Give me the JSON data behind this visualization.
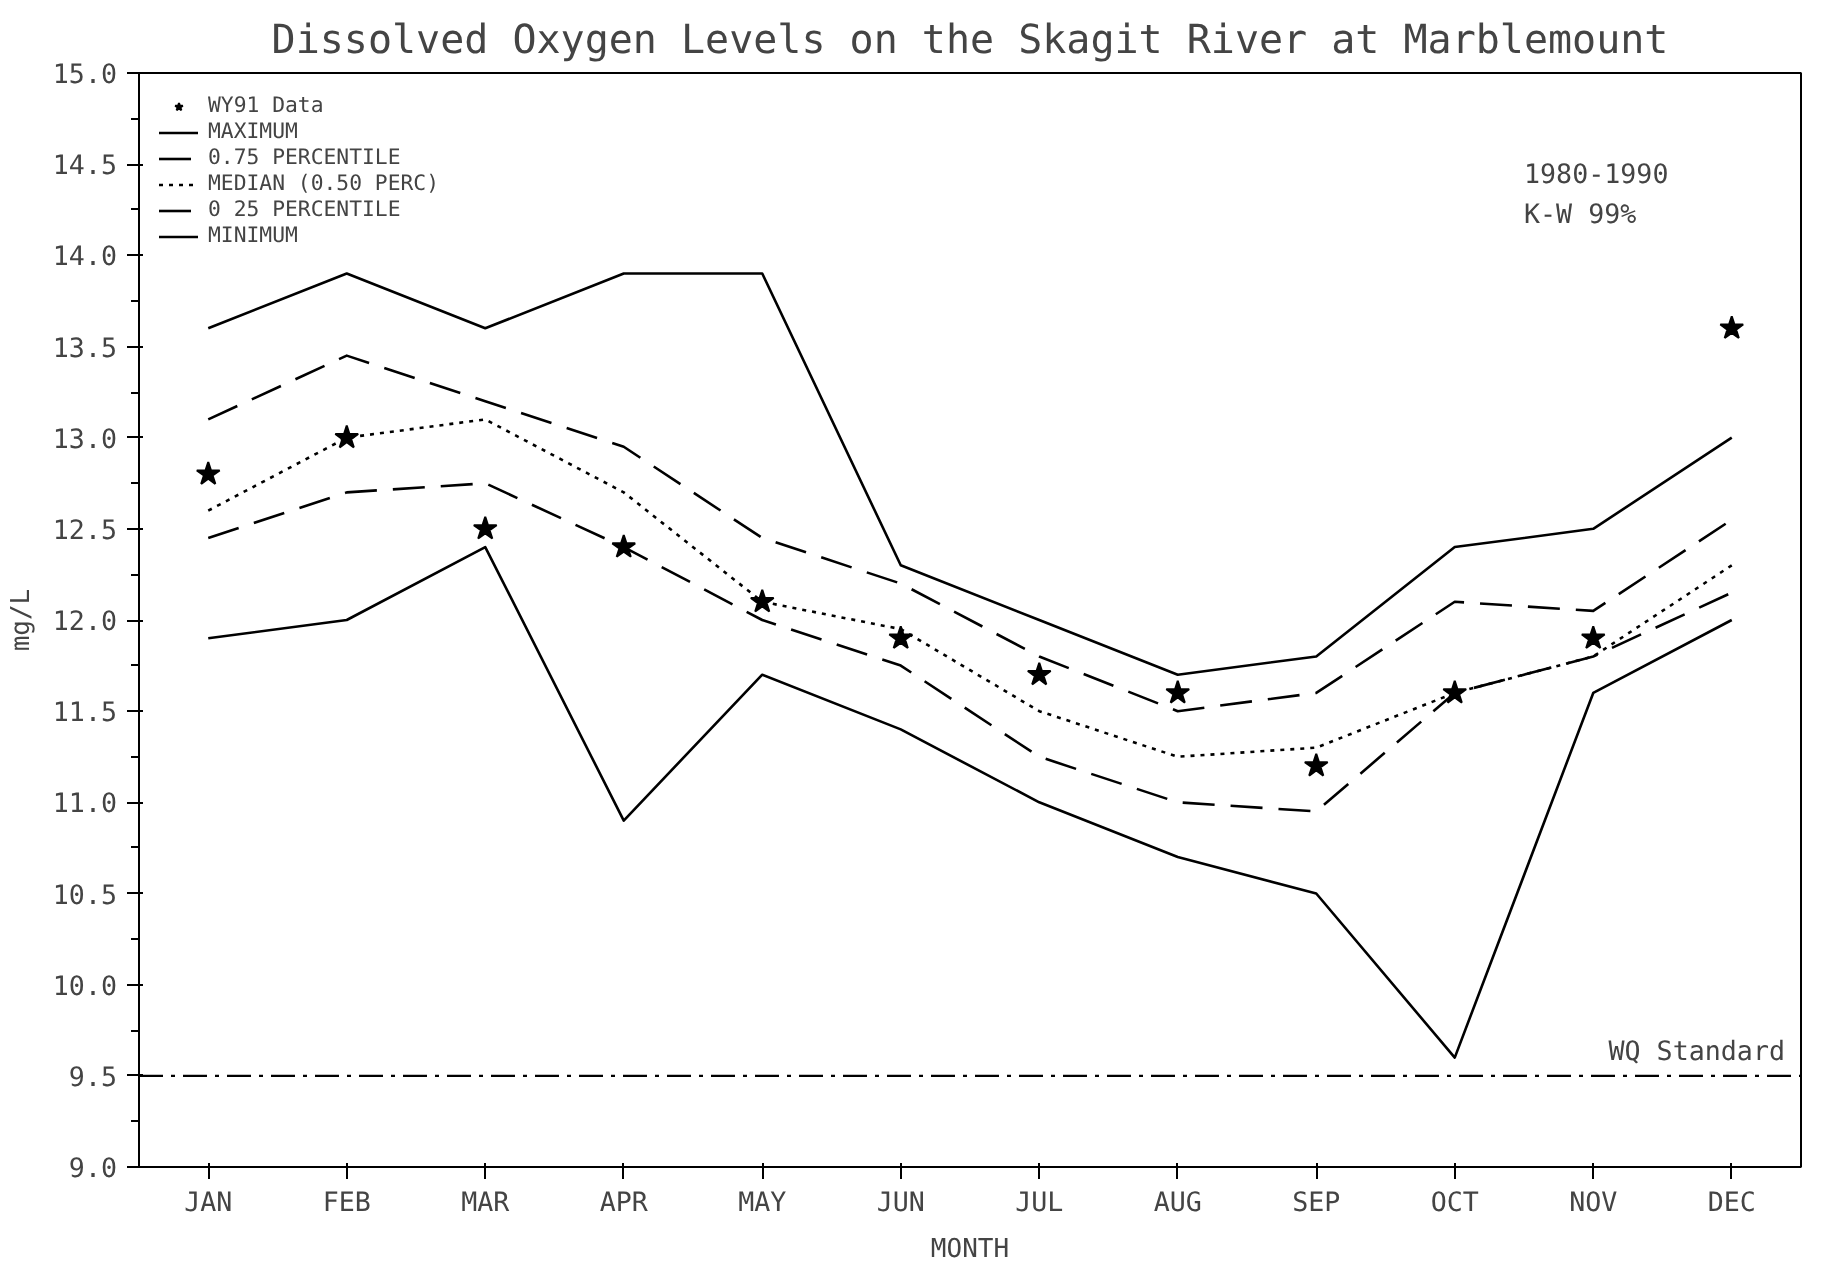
{
  "chart_data": {
    "type": "line",
    "title": "Dissolved Oxygen Levels on the Skagit River at Marblemount",
    "xlabel": "MONTH",
    "ylabel": "mg/L",
    "categories": [
      "JAN",
      "FEB",
      "MAR",
      "APR",
      "MAY",
      "JUN",
      "JUL",
      "AUG",
      "SEP",
      "OCT",
      "NOV",
      "DEC"
    ],
    "series": [
      {
        "name": "WY91 Data",
        "type": "scatter",
        "marker": "star",
        "color": "#000000",
        "values": [
          12.8,
          13.0,
          12.5,
          12.4,
          12.1,
          11.9,
          11.7,
          11.6,
          11.2,
          11.6,
          11.9,
          13.6
        ]
      },
      {
        "name": "MAXIMUM",
        "color": "#000000",
        "line_style": "solid",
        "values": [
          13.6,
          13.9,
          13.6,
          13.9,
          13.9,
          12.3,
          12.0,
          11.7,
          11.8,
          12.4,
          12.5,
          13.0
        ]
      },
      {
        "name": "0.75 PERCENTILE",
        "color": "#000000",
        "line_style": "dashed",
        "values": [
          13.1,
          13.45,
          13.2,
          12.95,
          12.45,
          12.2,
          11.8,
          11.5,
          11.6,
          12.1,
          12.05,
          12.55
        ]
      },
      {
        "name": "MEDIAN (0.50 PERC)",
        "color": "#000000",
        "line_style": "dotted",
        "values": [
          12.6,
          13.0,
          13.1,
          12.7,
          12.1,
          11.95,
          11.5,
          11.25,
          11.3,
          11.6,
          11.8,
          12.3
        ]
      },
      {
        "name": "0 25 PERCENTILE",
        "color": "#000000",
        "line_style": "dashed",
        "values": [
          12.45,
          12.7,
          12.75,
          12.4,
          12.0,
          11.75,
          11.25,
          11.0,
          10.95,
          11.6,
          11.8,
          12.15
        ]
      },
      {
        "name": "MINIMUM",
        "color": "#000000",
        "line_style": "solid",
        "values": [
          11.9,
          12.0,
          12.4,
          10.9,
          11.7,
          11.4,
          11.0,
          10.7,
          10.5,
          9.6,
          11.6,
          12.0
        ]
      }
    ],
    "ylim": [
      9.0,
      15.0
    ],
    "yticks": [
      {
        "value": 9.0,
        "label": "9.0"
      },
      {
        "value": 9.5,
        "label": "9.5"
      },
      {
        "value": 10.0,
        "label": "10.0"
      },
      {
        "value": 10.5,
        "label": "10.5"
      },
      {
        "value": 11.0,
        "label": "11.0"
      },
      {
        "value": 11.5,
        "label": "11.5"
      },
      {
        "value": 12.0,
        "label": "12.0"
      },
      {
        "value": 12.5,
        "label": "12.5"
      },
      {
        "value": 13.0,
        "label": "13.0"
      },
      {
        "value": 13.5,
        "label": "13.5"
      },
      {
        "value": 14.0,
        "label": "14.0"
      },
      {
        "value": 14.5,
        "label": "14.5"
      },
      {
        "value": 15.0,
        "label": "15.0"
      }
    ],
    "ref_lines": [
      {
        "axis": "y",
        "value": 9.5,
        "label": "WQ Standard",
        "color": "#000000",
        "line_style": "dashdot"
      }
    ],
    "annotations": [
      "1980-1990",
      "K-W 99%"
    ],
    "grid": false,
    "legend": "top left"
  }
}
